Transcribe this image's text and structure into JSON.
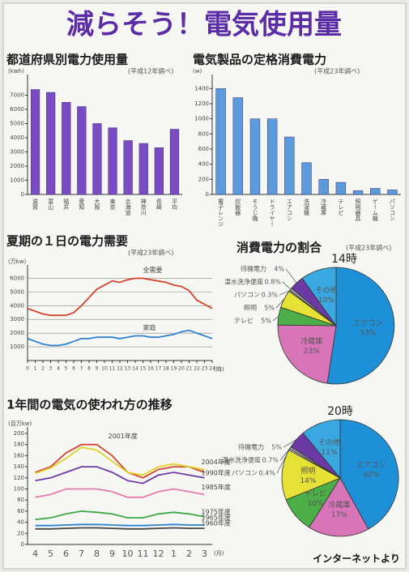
{
  "title": "減らそう！電気使用量",
  "footer": "インターネットより",
  "chart_data": [
    {
      "type": "bar",
      "title": "都道府県別電力使用量",
      "note": "(平成12年調べ)",
      "y_unit": "(kwh)",
      "color": "#7a4cc4",
      "categories": [
        "滋賀",
        "富山",
        "福井",
        "愛知",
        "大阪",
        "東京",
        "北海道",
        "神奈川",
        "長崎",
        "平均"
      ],
      "values": [
        7400,
        7200,
        6500,
        6200,
        5000,
        4700,
        3800,
        3600,
        3300,
        4600
      ],
      "ylim": [
        0,
        8000
      ],
      "yticks": [
        0,
        1000,
        2000,
        3000,
        4000,
        5000,
        6000,
        7000
      ]
    },
    {
      "type": "bar",
      "title": "電気製品の定格消費電力",
      "note": "(平成23年調べ)",
      "y_unit": "(w)",
      "color": "#5b9bdc",
      "categories": [
        "電子レンジ",
        "炊飯器",
        "そうじ機",
        "ドライヤー",
        "エアコン",
        "洗濯機",
        "冷蔵庫",
        "テレビ",
        "照明器具",
        "ゲーム機",
        "パソコン"
      ],
      "values": [
        1400,
        1280,
        1000,
        1000,
        760,
        420,
        200,
        160,
        50,
        80,
        60
      ],
      "ylim": [
        0,
        1500
      ],
      "yticks": [
        0,
        200,
        400,
        600,
        800,
        1000,
        1200,
        1400
      ]
    },
    {
      "type": "line",
      "title": "夏期の１日の電力需要",
      "note": "(平成23年調べ)",
      "y_unit": "(万kw)",
      "x_unit": "(時)",
      "grid": true,
      "x": [
        0,
        1,
        2,
        3,
        4,
        5,
        6,
        7,
        8,
        9,
        10,
        11,
        12,
        13,
        14,
        15,
        16,
        17,
        18,
        19,
        20,
        21,
        22,
        23,
        24
      ],
      "xlim": [
        0,
        24
      ],
      "xticks": [
        0,
        1,
        2,
        3,
        4,
        5,
        6,
        7,
        8,
        9,
        10,
        11,
        12,
        13,
        14,
        15,
        16,
        17,
        18,
        19,
        20,
        21,
        22,
        23,
        24
      ],
      "ylim": [
        0,
        6500
      ],
      "yticks": [
        1000,
        2000,
        3000,
        4000,
        5000,
        6000
      ],
      "series": [
        {
          "name": "全需要",
          "color": "#d2452e",
          "values": [
            3800,
            3600,
            3400,
            3300,
            3300,
            3300,
            3500,
            4000,
            4600,
            5200,
            5500,
            5800,
            5700,
            5900,
            6000,
            6000,
            5900,
            5800,
            5700,
            5500,
            5400,
            5100,
            4400,
            4100,
            3800
          ]
        },
        {
          "name": "家庭",
          "color": "#2b82cf",
          "values": [
            1600,
            1400,
            1200,
            1100,
            1100,
            1200,
            1400,
            1600,
            1600,
            1700,
            1700,
            1700,
            1600,
            1700,
            1800,
            1800,
            1700,
            1700,
            1800,
            1900,
            2100,
            2200,
            2000,
            1800,
            1600
          ]
        }
      ]
    },
    {
      "type": "pie",
      "title": "消費電力の割合",
      "note": "(平成23年調べ)",
      "label": "14時",
      "categories": [
        "エアコン",
        "冷蔵庫",
        "テレビ",
        "照明",
        "パソコン",
        "温水洗浄便座",
        "待機電力",
        "その他"
      ],
      "values": [
        53,
        23,
        5,
        5,
        0.3,
        0.8,
        4,
        10
      ],
      "value_labels": [
        "53%",
        "23%",
        "5%",
        "5%",
        "0.3%",
        "0.8%",
        "4%",
        "10%"
      ],
      "colors": [
        "#1e90d8",
        "#d775b8",
        "#4cae46",
        "#e6e135",
        "#ffffff",
        "#9a9a9a",
        "#6b3aa5",
        "#3aa8e0"
      ]
    },
    {
      "type": "pie",
      "label": "20時",
      "categories": [
        "エアコン",
        "冷蔵庫",
        "テレビ",
        "照明",
        "パソコン",
        "温水洗浄便座",
        "待機電力",
        "その他"
      ],
      "values": [
        42,
        17,
        10,
        14,
        0.4,
        0.7,
        5,
        11
      ],
      "value_labels": [
        "42%",
        "17%",
        "10%",
        "14%",
        "0.4%",
        "0.7%",
        "5%",
        "11%"
      ],
      "colors": [
        "#1e90d8",
        "#d775b8",
        "#4cae46",
        "#e6e135",
        "#ffffff",
        "#9a9a9a",
        "#6b3aa5",
        "#3aa8e0"
      ]
    },
    {
      "type": "line",
      "title": "1年間の電気の使われ方の推移",
      "y_unit": "(百万kw)",
      "x_unit": "(月)",
      "grid": false,
      "categories": [
        "4",
        "5",
        "6",
        "7",
        "8",
        "9",
        "10",
        "11",
        "12",
        "1",
        "2",
        "3"
      ],
      "ylim": [
        0,
        200
      ],
      "yticks": [
        0,
        20,
        40,
        60,
        80,
        100,
        120,
        140,
        160,
        180,
        200
      ],
      "series": [
        {
          "name": "2001年度",
          "color": "#d2452e",
          "values": [
            130,
            140,
            165,
            180,
            180,
            160,
            130,
            120,
            135,
            140,
            140,
            130
          ]
        },
        {
          "name": "2004年度",
          "color": "#e0d22a",
          "values": [
            128,
            138,
            155,
            175,
            170,
            150,
            130,
            125,
            140,
            145,
            140,
            135
          ]
        },
        {
          "name": "1990年度",
          "color": "#6b3aa5",
          "values": [
            115,
            120,
            130,
            140,
            140,
            130,
            115,
            110,
            125,
            130,
            125,
            120
          ]
        },
        {
          "name": "1985年度",
          "color": "#e57ab0",
          "values": [
            85,
            90,
            100,
            100,
            100,
            95,
            85,
            85,
            95,
            100,
            95,
            90
          ]
        },
        {
          "name": "1975年度",
          "color": "#3fa84a",
          "values": [
            45,
            48,
            55,
            60,
            58,
            55,
            48,
            48,
            55,
            58,
            55,
            50
          ]
        },
        {
          "name": "1965年度",
          "color": "#2b82cf",
          "values": [
            34,
            34,
            35,
            36,
            36,
            35,
            34,
            34,
            35,
            36,
            35,
            35
          ]
        },
        {
          "name": "1960年度",
          "color": "#444444",
          "values": [
            28,
            28,
            29,
            30,
            30,
            29,
            28,
            28,
            29,
            30,
            29,
            29
          ]
        }
      ]
    }
  ]
}
